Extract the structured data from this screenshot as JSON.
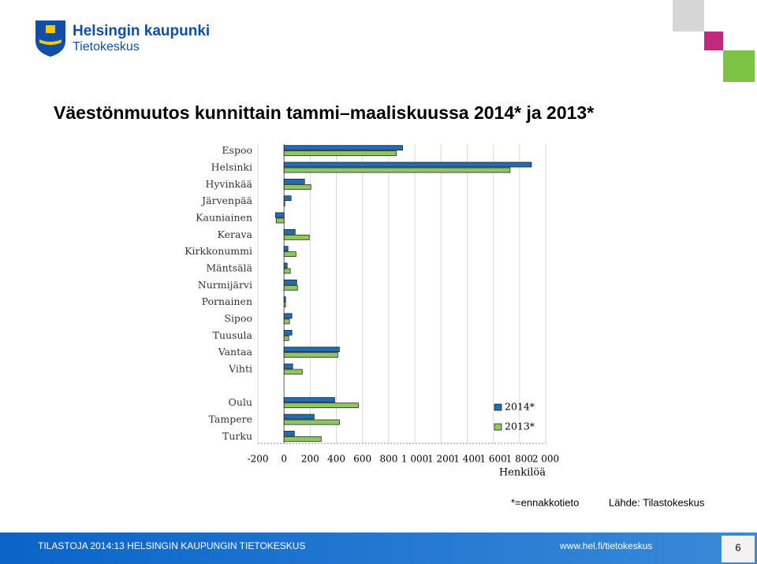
{
  "header": {
    "brand": "Helsingin kaupunki",
    "unit": "Tietokeskus"
  },
  "chart_data": {
    "type": "barh",
    "title": "Väestönmuutos kunnittain tammi–maaliskuussa 2014* ja 2013*",
    "x_label": "Henkilöä",
    "categories": [
      "Espoo",
      "Helsinki",
      "Hyvinkää",
      "Järvenpää",
      "Kauniainen",
      "Kerava",
      "Kirkkonummi",
      "Mäntsälä",
      "Nurmijärvi",
      "Pornainen",
      "Sipoo",
      "Tuusula",
      "Vantaa",
      "Vihti",
      null,
      "Oulu",
      "Tampere",
      "Turku"
    ],
    "series": [
      {
        "name": "2014*",
        "color": "#1f6db5",
        "values": [
          906,
          1891,
          157,
          54,
          -65,
          85,
          30,
          24,
          97,
          12,
          60,
          60,
          423,
          66,
          null,
          387,
          230,
          79
        ]
      },
      {
        "name": "2013*",
        "color": "#8dc95f",
        "values": [
          858,
          1728,
          205,
          6,
          -60,
          193,
          91,
          48,
          103,
          12,
          42,
          36,
          411,
          139,
          null,
          568,
          423,
          284
        ]
      }
    ],
    "xlim": [
      -200,
      2000
    ],
    "xticks": [
      -200,
      0,
      200,
      400,
      600,
      800,
      {
        "value": 1000,
        "label": "1 000"
      },
      {
        "value": 1200,
        "label": "1 200"
      },
      {
        "value": 1400,
        "label": "1 400"
      },
      {
        "value": 1600,
        "label": "1 600"
      },
      {
        "value": 1800,
        "label": "1 800"
      },
      {
        "value": 2000,
        "label": "2 000"
      }
    ],
    "grid": true,
    "legend": "right"
  },
  "notes": {
    "footnote": "*=ennakkotieto",
    "source": "Lähde: Tilastokeskus"
  },
  "footer": {
    "left": "TILASTOJA 2014:13 HELSINGIN KAUPUNGIN TIETOKESKUS",
    "url": "www.hel.fi/tietokeskus",
    "page": "6"
  }
}
